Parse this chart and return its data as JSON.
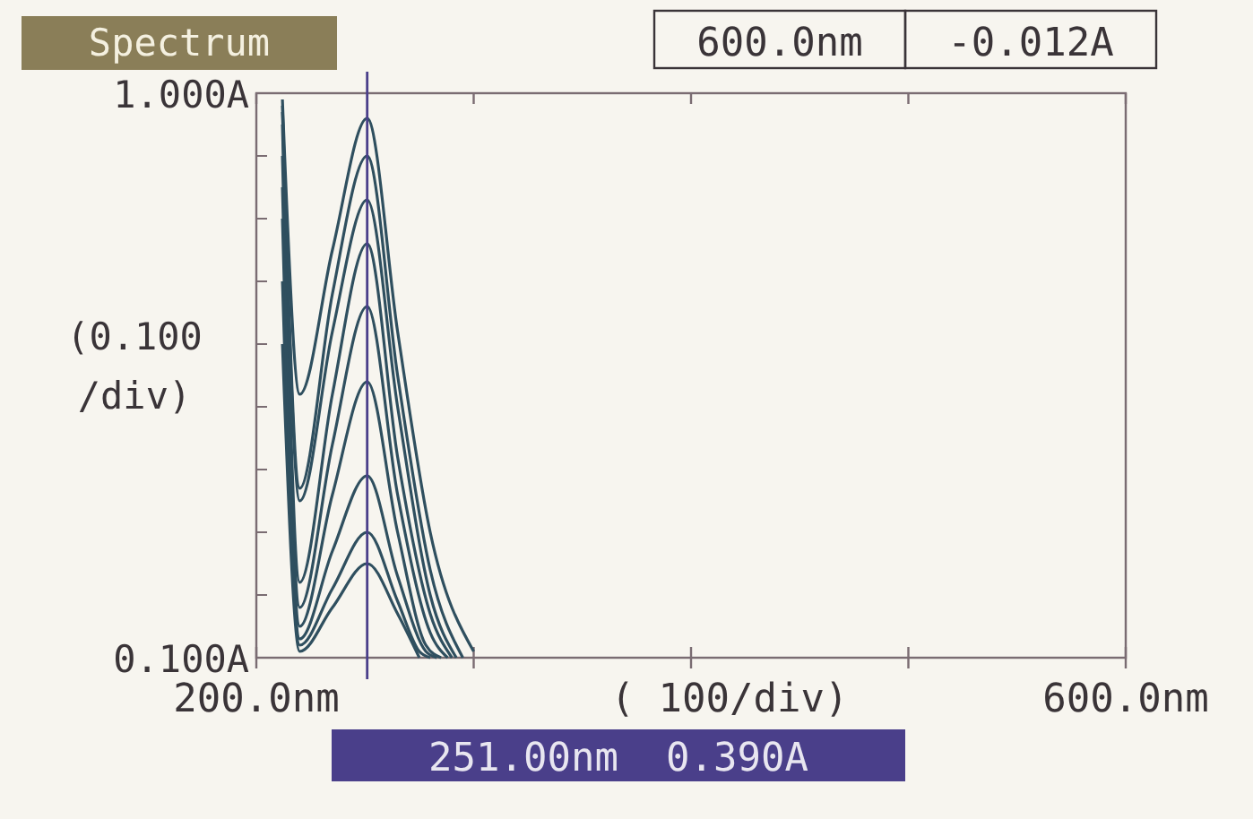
{
  "chart_data": {
    "type": "line",
    "title": "Spectrum",
    "xlabel": "( 100/div)",
    "ylabel": "(0.100\n/div)",
    "annotations": [
      "600.0nm",
      "-0.012A"
    ],
    "xlim": [
      200,
      600
    ],
    "xticks": [
      {
        "value": 200,
        "label": "200.0nm"
      },
      {
        "value": 300,
        "label": null
      },
      {
        "value": 400,
        "label": null
      },
      {
        "value": 500,
        "label": null
      },
      {
        "value": 600,
        "label": "600.0nm"
      }
    ],
    "ylim": [
      0.1,
      1.0
    ],
    "yticks": [
      {
        "value": 0.1,
        "label": "0.100A"
      },
      {
        "value": 0.2,
        "label": null
      },
      {
        "value": 0.3,
        "label": null
      },
      {
        "value": 0.4,
        "label": null
      },
      {
        "value": 0.5,
        "label": null
      },
      {
        "value": 0.6,
        "label": null
      },
      {
        "value": 0.7,
        "label": null
      },
      {
        "value": 0.8,
        "label": null
      },
      {
        "value": 0.9,
        "label": null
      },
      {
        "value": 1.0,
        "label": "1.000A"
      }
    ],
    "ref_lines": [
      {
        "axis": "x",
        "value": 251,
        "label": "251.00nm  0.390A",
        "color": "#4a3f8a"
      }
    ],
    "grid": false,
    "marker": "none",
    "line_style": "solid",
    "series": [
      {
        "color": "#2f4f5f",
        "x": [
          212,
          220,
          235,
          251,
          265,
          280,
          300
        ],
        "values": [
          0.99,
          0.52,
          0.75,
          0.96,
          0.62,
          0.3,
          0.11
        ]
      },
      {
        "color": "#2f4f5f",
        "x": [
          212,
          220,
          235,
          251,
          265,
          280,
          295
        ],
        "values": [
          0.98,
          0.37,
          0.68,
          0.9,
          0.55,
          0.24,
          0.1
        ]
      },
      {
        "color": "#2f4f5f",
        "x": [
          212,
          220,
          235,
          251,
          265,
          280,
          292
        ],
        "values": [
          0.97,
          0.35,
          0.62,
          0.83,
          0.5,
          0.2,
          0.1
        ]
      },
      {
        "color": "#2f4f5f",
        "x": [
          212,
          220,
          235,
          251,
          265,
          280,
          290
        ],
        "values": [
          0.95,
          0.22,
          0.52,
          0.76,
          0.42,
          0.17,
          0.1
        ]
      },
      {
        "color": "#2f4f5f",
        "x": [
          212,
          220,
          235,
          251,
          265,
          280,
          288
        ],
        "values": [
          0.9,
          0.18,
          0.44,
          0.66,
          0.36,
          0.14,
          0.1
        ]
      },
      {
        "color": "#2f4f5f",
        "x": [
          212,
          220,
          235,
          251,
          265,
          278,
          285
        ],
        "values": [
          0.85,
          0.15,
          0.36,
          0.54,
          0.3,
          0.12,
          0.1
        ]
      },
      {
        "color": "#2f4f5f",
        "x": [
          212,
          220,
          235,
          251,
          265,
          278,
          283
        ],
        "values": [
          0.8,
          0.13,
          0.27,
          0.39,
          0.23,
          0.11,
          0.1
        ]
      },
      {
        "color": "#2f4f5f",
        "x": [
          212,
          220,
          235,
          251,
          265,
          275,
          280
        ],
        "values": [
          0.7,
          0.12,
          0.21,
          0.3,
          0.19,
          0.11,
          0.1
        ]
      },
      {
        "color": "#2f4f5f",
        "x": [
          212,
          220,
          235,
          251,
          265,
          275
        ],
        "values": [
          0.6,
          0.11,
          0.18,
          0.25,
          0.17,
          0.1
        ]
      }
    ]
  }
}
